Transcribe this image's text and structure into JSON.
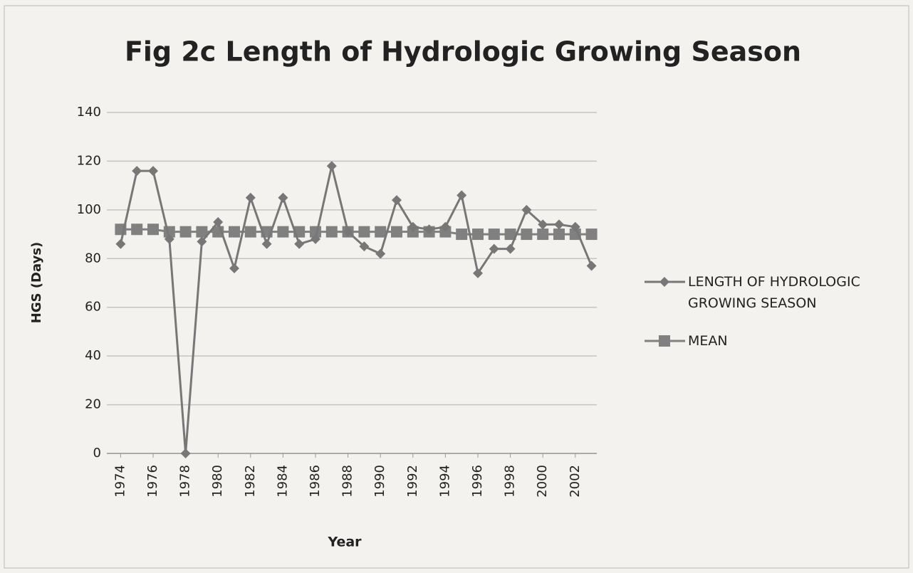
{
  "chart_data": {
    "type": "line",
    "title": "Fig 2c Length of Hydrologic Growing Season",
    "x_label": "Year",
    "y_label": "HGS (Days)",
    "x": [
      1974,
      1975,
      1976,
      1977,
      1978,
      1979,
      1980,
      1981,
      1982,
      1983,
      1984,
      1985,
      1986,
      1987,
      1988,
      1989,
      1990,
      1991,
      1992,
      1993,
      1994,
      1995,
      1996,
      1997,
      1998,
      1999,
      2000,
      2001,
      2002,
      2003
    ],
    "series": [
      {
        "name": "LENGTH OF HYDROLOGIC GROWING SEASON",
        "color": "#777777",
        "marker": "diamond",
        "values": [
          86,
          116,
          116,
          88,
          0,
          87,
          95,
          76,
          105,
          86,
          105,
          86,
          88,
          118,
          91,
          85,
          82,
          104,
          93,
          92,
          93,
          106,
          74,
          84,
          84,
          100,
          94,
          94,
          93,
          77
        ]
      },
      {
        "name": "MEAN",
        "color": "#808080",
        "marker": "square",
        "values": [
          92,
          92,
          92,
          91,
          91,
          91,
          91,
          91,
          91,
          91,
          91,
          91,
          91,
          91,
          91,
          91,
          91,
          91,
          91,
          91,
          91,
          90,
          90,
          90,
          90,
          90,
          90,
          90,
          90,
          90
        ]
      }
    ],
    "xlim": [
      1973.5,
      2003.5
    ],
    "xticks": [
      1974,
      1976,
      1978,
      1980,
      1982,
      1984,
      1986,
      1988,
      1990,
      1992,
      1994,
      1996,
      1998,
      2000,
      2002
    ],
    "ylim": [
      0,
      140
    ],
    "yticks": [
      0,
      20,
      40,
      60,
      80,
      100,
      120,
      140
    ],
    "grid": true,
    "legend": "right"
  }
}
